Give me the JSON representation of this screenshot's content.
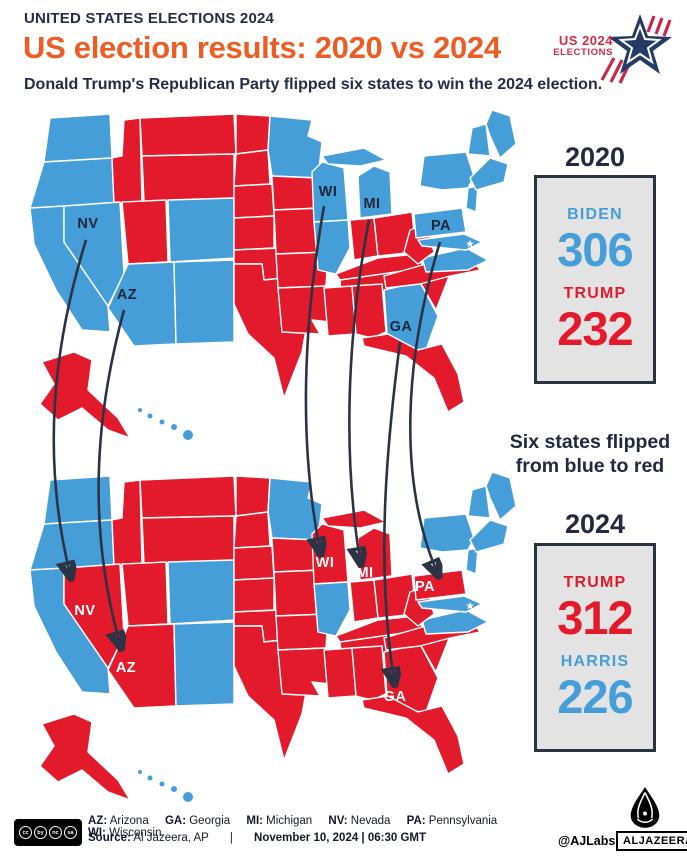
{
  "header": {
    "kicker": "UNITED STATES ELECTIONS 2024",
    "title": "US election results: 2020 vs 2024",
    "subtitle": "Donald Trump's Republican Party flipped six states to win the 2024 election."
  },
  "corner_logo": {
    "line1": "US 2024",
    "line2": "ELECTIONS"
  },
  "colors": {
    "democrat_blue": "#459ed7",
    "republican_red": "#e21a2c",
    "navy_text": "#262c44",
    "orange_title": "#ee5c23",
    "box_background": "#e3e3e4",
    "box_border": "#2b3240",
    "arrow": "#2b3344"
  },
  "scoreboards": [
    {
      "year": "2020",
      "rows": [
        {
          "name": "BIDEN",
          "votes": "306",
          "party": "dem"
        },
        {
          "name": "TRUMP",
          "votes": "232",
          "party": "gop"
        }
      ]
    },
    {
      "year": "2024",
      "rows": [
        {
          "name": "TRUMP",
          "votes": "312",
          "party": "gop"
        },
        {
          "name": "HARRIS",
          "votes": "226",
          "party": "dem"
        }
      ]
    }
  ],
  "callout": {
    "line1": "Six states flipped",
    "line2": "from blue to red"
  },
  "flipped_states": [
    "NV",
    "AZ",
    "WI",
    "MI",
    "PA",
    "GA"
  ],
  "maps": {
    "2020": {
      "blue_states": [
        "WA",
        "OR",
        "CA",
        "NV",
        "AZ",
        "CO",
        "NM",
        "MN",
        "WI",
        "IL",
        "MI",
        "MI_UP",
        "GA",
        "VA",
        "PA",
        "NY",
        "NJ",
        "MD_DE",
        "VT_NH",
        "ME",
        "MA_CT_RI",
        "HI"
      ]
    },
    "2024": {
      "blue_states": [
        "WA",
        "OR",
        "CA",
        "CO",
        "NM",
        "MN",
        "IL",
        "VA",
        "NY",
        "NJ",
        "MD_DE",
        "VT_NH",
        "ME",
        "MA_CT_RI",
        "HI"
      ]
    }
  },
  "chart_data": {
    "type": "choropleth_map_pair",
    "title": "US election results: 2020 vs 2024",
    "annotation": "Six states flipped from blue to red",
    "maps": [
      {
        "year": "2020",
        "results": [
          {
            "candidate": "BIDEN",
            "electoral_votes": 306,
            "color": "blue"
          },
          {
            "candidate": "TRUMP",
            "electoral_votes": 232,
            "color": "red"
          }
        ],
        "labeled_states": [
          "NV",
          "AZ",
          "WI",
          "MI",
          "PA",
          "GA"
        ],
        "labeled_states_color": "blue"
      },
      {
        "year": "2024",
        "results": [
          {
            "candidate": "TRUMP",
            "electoral_votes": 312,
            "color": "red"
          },
          {
            "candidate": "HARRIS",
            "electoral_votes": 226,
            "color": "blue"
          }
        ],
        "labeled_states": [
          "NV",
          "AZ",
          "WI",
          "MI",
          "PA",
          "GA"
        ],
        "labeled_states_color": "red"
      }
    ],
    "flipped_states": [
      {
        "abbr": "NV",
        "name": "Nevada"
      },
      {
        "abbr": "AZ",
        "name": "Arizona"
      },
      {
        "abbr": "WI",
        "name": "Wisconsin"
      },
      {
        "abbr": "MI",
        "name": "Michigan"
      },
      {
        "abbr": "PA",
        "name": "Pennsylvania"
      },
      {
        "abbr": "GA",
        "name": "Georgia"
      }
    ]
  },
  "footer": {
    "abbreviations": [
      {
        "abbr": "AZ:",
        "name": "Arizona"
      },
      {
        "abbr": "GA:",
        "name": "Georgia"
      },
      {
        "abbr": "MI:",
        "name": "Michigan"
      },
      {
        "abbr": "NV:",
        "name": "Nevada"
      },
      {
        "abbr": "PA:",
        "name": "Pennsylvania"
      },
      {
        "abbr": "WI:",
        "name": "Wisconsin"
      }
    ],
    "source_label": "Source:",
    "source_name": "Al Jazeera, AP",
    "divider": "|",
    "timestamp": "November 10, 2024 | 06:30 GMT",
    "credit": "@AJLabs",
    "brand": "ALJAZEERA",
    "cc_labels": [
      "cc",
      "by",
      "nc",
      "sa"
    ],
    "cc_sub": "BY NC SA"
  }
}
